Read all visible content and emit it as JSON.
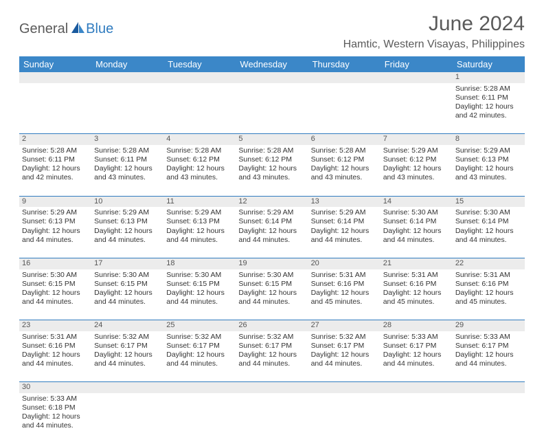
{
  "brand": {
    "part1": "General",
    "part2": "Blue"
  },
  "title": "June 2024",
  "location": "Hamtic, Western Visayas, Philippines",
  "colors": {
    "header_bg": "#3b87c8",
    "header_text": "#ffffff",
    "grid_line": "#2f7bbf",
    "daynum_bg": "#ececec",
    "text": "#333333",
    "brand_gray": "#5a5a5a",
    "brand_blue": "#2f7bbf"
  },
  "weekdays": [
    "Sunday",
    "Monday",
    "Tuesday",
    "Wednesday",
    "Thursday",
    "Friday",
    "Saturday"
  ],
  "weeks": [
    {
      "nums": [
        "",
        "",
        "",
        "",
        "",
        "",
        "1"
      ],
      "cells": [
        null,
        null,
        null,
        null,
        null,
        null,
        {
          "sunrise": "5:28 AM",
          "sunset": "6:11 PM",
          "dl1": "Daylight: 12 hours",
          "dl2": "and 42 minutes."
        }
      ]
    },
    {
      "nums": [
        "2",
        "3",
        "4",
        "5",
        "6",
        "7",
        "8"
      ],
      "cells": [
        {
          "sunrise": "5:28 AM",
          "sunset": "6:11 PM",
          "dl1": "Daylight: 12 hours",
          "dl2": "and 42 minutes."
        },
        {
          "sunrise": "5:28 AM",
          "sunset": "6:11 PM",
          "dl1": "Daylight: 12 hours",
          "dl2": "and 43 minutes."
        },
        {
          "sunrise": "5:28 AM",
          "sunset": "6:12 PM",
          "dl1": "Daylight: 12 hours",
          "dl2": "and 43 minutes."
        },
        {
          "sunrise": "5:28 AM",
          "sunset": "6:12 PM",
          "dl1": "Daylight: 12 hours",
          "dl2": "and 43 minutes."
        },
        {
          "sunrise": "5:28 AM",
          "sunset": "6:12 PM",
          "dl1": "Daylight: 12 hours",
          "dl2": "and 43 minutes."
        },
        {
          "sunrise": "5:29 AM",
          "sunset": "6:12 PM",
          "dl1": "Daylight: 12 hours",
          "dl2": "and 43 minutes."
        },
        {
          "sunrise": "5:29 AM",
          "sunset": "6:13 PM",
          "dl1": "Daylight: 12 hours",
          "dl2": "and 43 minutes."
        }
      ]
    },
    {
      "nums": [
        "9",
        "10",
        "11",
        "12",
        "13",
        "14",
        "15"
      ],
      "cells": [
        {
          "sunrise": "5:29 AM",
          "sunset": "6:13 PM",
          "dl1": "Daylight: 12 hours",
          "dl2": "and 44 minutes."
        },
        {
          "sunrise": "5:29 AM",
          "sunset": "6:13 PM",
          "dl1": "Daylight: 12 hours",
          "dl2": "and 44 minutes."
        },
        {
          "sunrise": "5:29 AM",
          "sunset": "6:13 PM",
          "dl1": "Daylight: 12 hours",
          "dl2": "and 44 minutes."
        },
        {
          "sunrise": "5:29 AM",
          "sunset": "6:14 PM",
          "dl1": "Daylight: 12 hours",
          "dl2": "and 44 minutes."
        },
        {
          "sunrise": "5:29 AM",
          "sunset": "6:14 PM",
          "dl1": "Daylight: 12 hours",
          "dl2": "and 44 minutes."
        },
        {
          "sunrise": "5:30 AM",
          "sunset": "6:14 PM",
          "dl1": "Daylight: 12 hours",
          "dl2": "and 44 minutes."
        },
        {
          "sunrise": "5:30 AM",
          "sunset": "6:14 PM",
          "dl1": "Daylight: 12 hours",
          "dl2": "and 44 minutes."
        }
      ]
    },
    {
      "nums": [
        "16",
        "17",
        "18",
        "19",
        "20",
        "21",
        "22"
      ],
      "cells": [
        {
          "sunrise": "5:30 AM",
          "sunset": "6:15 PM",
          "dl1": "Daylight: 12 hours",
          "dl2": "and 44 minutes."
        },
        {
          "sunrise": "5:30 AM",
          "sunset": "6:15 PM",
          "dl1": "Daylight: 12 hours",
          "dl2": "and 44 minutes."
        },
        {
          "sunrise": "5:30 AM",
          "sunset": "6:15 PM",
          "dl1": "Daylight: 12 hours",
          "dl2": "and 44 minutes."
        },
        {
          "sunrise": "5:30 AM",
          "sunset": "6:15 PM",
          "dl1": "Daylight: 12 hours",
          "dl2": "and 44 minutes."
        },
        {
          "sunrise": "5:31 AM",
          "sunset": "6:16 PM",
          "dl1": "Daylight: 12 hours",
          "dl2": "and 45 minutes."
        },
        {
          "sunrise": "5:31 AM",
          "sunset": "6:16 PM",
          "dl1": "Daylight: 12 hours",
          "dl2": "and 45 minutes."
        },
        {
          "sunrise": "5:31 AM",
          "sunset": "6:16 PM",
          "dl1": "Daylight: 12 hours",
          "dl2": "and 45 minutes."
        }
      ]
    },
    {
      "nums": [
        "23",
        "24",
        "25",
        "26",
        "27",
        "28",
        "29"
      ],
      "cells": [
        {
          "sunrise": "5:31 AM",
          "sunset": "6:16 PM",
          "dl1": "Daylight: 12 hours",
          "dl2": "and 44 minutes."
        },
        {
          "sunrise": "5:32 AM",
          "sunset": "6:17 PM",
          "dl1": "Daylight: 12 hours",
          "dl2": "and 44 minutes."
        },
        {
          "sunrise": "5:32 AM",
          "sunset": "6:17 PM",
          "dl1": "Daylight: 12 hours",
          "dl2": "and 44 minutes."
        },
        {
          "sunrise": "5:32 AM",
          "sunset": "6:17 PM",
          "dl1": "Daylight: 12 hours",
          "dl2": "and 44 minutes."
        },
        {
          "sunrise": "5:32 AM",
          "sunset": "6:17 PM",
          "dl1": "Daylight: 12 hours",
          "dl2": "and 44 minutes."
        },
        {
          "sunrise": "5:33 AM",
          "sunset": "6:17 PM",
          "dl1": "Daylight: 12 hours",
          "dl2": "and 44 minutes."
        },
        {
          "sunrise": "5:33 AM",
          "sunset": "6:17 PM",
          "dl1": "Daylight: 12 hours",
          "dl2": "and 44 minutes."
        }
      ]
    },
    {
      "nums": [
        "30",
        "",
        "",
        "",
        "",
        "",
        ""
      ],
      "cells": [
        {
          "sunrise": "5:33 AM",
          "sunset": "6:18 PM",
          "dl1": "Daylight: 12 hours",
          "dl2": "and 44 minutes."
        },
        null,
        null,
        null,
        null,
        null,
        null
      ],
      "last": true
    }
  ],
  "labels": {
    "sunrise": "Sunrise: ",
    "sunset": "Sunset: "
  }
}
